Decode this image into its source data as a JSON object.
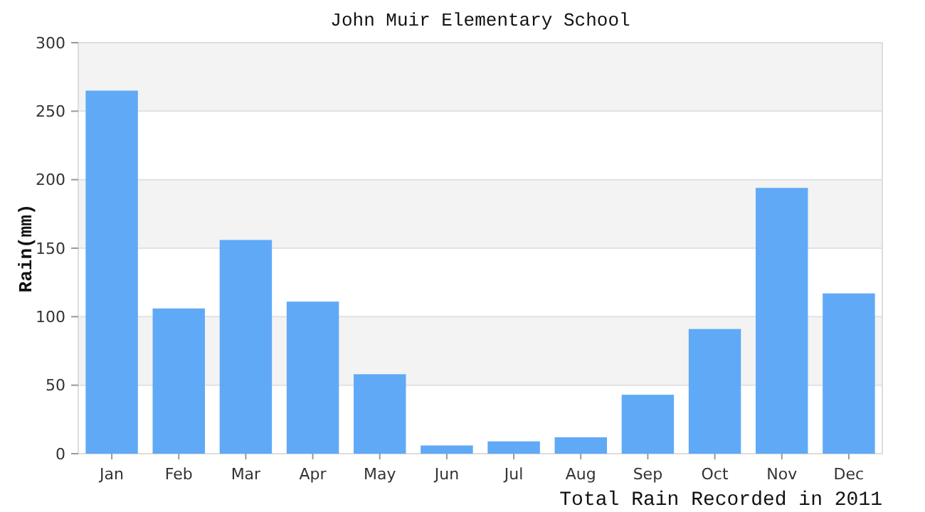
{
  "chart_data": {
    "type": "bar",
    "title": "John Muir Elementary School",
    "xlabel": "Total Rain Recorded in 2011",
    "ylabel": "Rain(mm)",
    "categories": [
      "Jan",
      "Feb",
      "Mar",
      "Apr",
      "May",
      "Jun",
      "Jul",
      "Aug",
      "Sep",
      "Oct",
      "Nov",
      "Dec"
    ],
    "values": [
      265,
      106,
      156,
      111,
      58,
      6,
      9,
      12,
      43,
      91,
      194,
      117
    ],
    "color": "#60a9f6",
    "ylim": [
      0,
      300
    ],
    "yticks": [
      0,
      50,
      100,
      150,
      200,
      250,
      300
    ],
    "grid": true
  }
}
